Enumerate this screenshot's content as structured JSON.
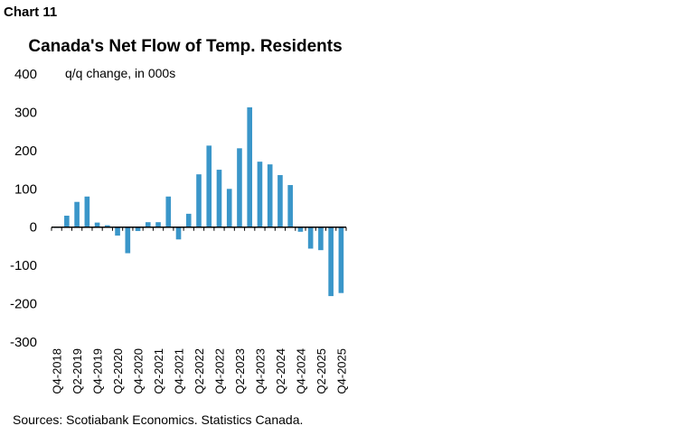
{
  "header": {
    "chart_label": "Chart 11",
    "title": "Canada's Net Flow of Temp. Residents"
  },
  "footer": {
    "source": "Sources: Scotiabank Economics. Statistics Canada."
  },
  "colors": {
    "bar": "#3a96c9",
    "axis": "#000000"
  },
  "chart_data": {
    "type": "bar",
    "title": "Canada's Net Flow of Temp. Residents",
    "ylabel": "q/q change, in 000s",
    "xlabel": "",
    "ylim": [
      -300,
      400
    ],
    "yticks": [
      400,
      300,
      200,
      100,
      0,
      -100,
      -200,
      -300
    ],
    "grid": false,
    "categories": [
      "Q4-2018",
      "Q1-2019",
      "Q2-2019",
      "Q3-2019",
      "Q4-2019",
      "Q1-2020",
      "Q2-2020",
      "Q3-2020",
      "Q4-2020",
      "Q1-2021",
      "Q2-2021",
      "Q3-2021",
      "Q4-2021",
      "Q1-2022",
      "Q2-2022",
      "Q3-2022",
      "Q4-2022",
      "Q1-2023",
      "Q2-2023",
      "Q3-2023",
      "Q4-2023",
      "Q1-2024",
      "Q2-2024",
      "Q3-2024",
      "Q4-2024",
      "Q1-2025",
      "Q2-2025",
      "Q3-2025",
      "Q4-2025"
    ],
    "x_tick_labels": [
      "Q4-2018",
      "Q2-2019",
      "Q4-2019",
      "Q2-2020",
      "Q4-2020",
      "Q2-2021",
      "Q4-2021",
      "Q2-2022",
      "Q4-2022",
      "Q2-2023",
      "Q4-2023",
      "Q2-2024",
      "Q4-2024",
      "Q2-2025",
      "Q4-2025"
    ],
    "series": [
      {
        "values": [
          -2,
          30,
          66,
          80,
          12,
          5,
          -22,
          -68,
          -10,
          13,
          13,
          80,
          -32,
          35,
          138,
          213,
          150,
          100,
          206,
          313,
          171,
          164,
          136,
          110,
          -12,
          -56,
          -60,
          -180,
          -172
        ]
      }
    ]
  }
}
